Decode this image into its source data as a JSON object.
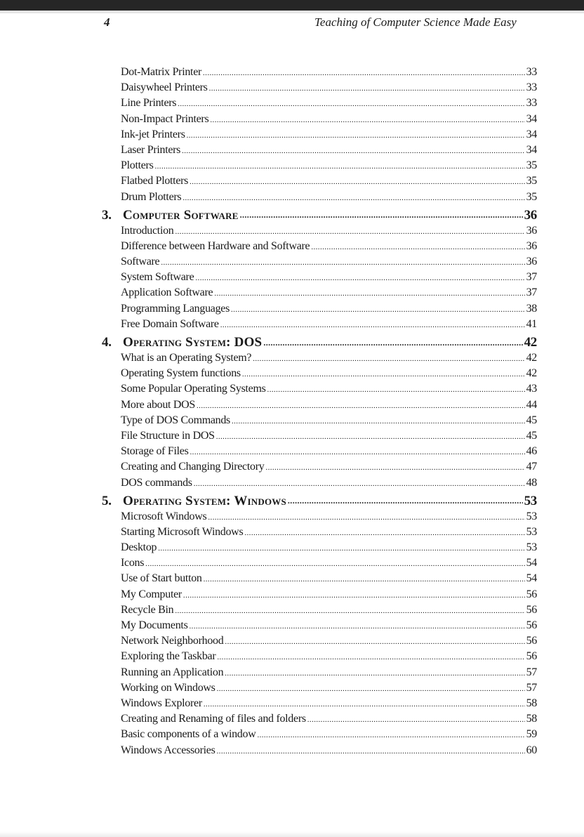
{
  "header": {
    "page_number": "4",
    "running_title": "Teaching of Computer Science Made Easy"
  },
  "toc": [
    {
      "type": "entry",
      "label": "Dot-Matrix Printer",
      "page": "33"
    },
    {
      "type": "entry",
      "label": "Daisywheel Printers",
      "page": "33"
    },
    {
      "type": "entry",
      "label": "Line Printers",
      "page": "33"
    },
    {
      "type": "entry",
      "label": "Non-Impact Printers",
      "page": "34"
    },
    {
      "type": "entry",
      "label": "Ink-jet Printers",
      "page": "34"
    },
    {
      "type": "entry",
      "label": "Laser Printers",
      "page": "34"
    },
    {
      "type": "entry",
      "label": "Plotters",
      "page": "35"
    },
    {
      "type": "entry",
      "label": "Flatbed Plotters",
      "page": "35"
    },
    {
      "type": "entry",
      "label": "Drum Plotters",
      "page": "35"
    },
    {
      "type": "chapter",
      "number": "3.",
      "label": "Computer Software",
      "page": "36"
    },
    {
      "type": "entry",
      "label": "Introduction",
      "page": "36"
    },
    {
      "type": "entry",
      "label": "Difference between Hardware and Software",
      "page": "36"
    },
    {
      "type": "entry",
      "label": "Software",
      "page": "36"
    },
    {
      "type": "entry",
      "label": "System Software",
      "page": "37"
    },
    {
      "type": "entry",
      "label": "Application Software",
      "page": "37"
    },
    {
      "type": "entry",
      "label": "Programming Languages",
      "page": "38"
    },
    {
      "type": "entry",
      "label": "Free Domain Software",
      "page": "41"
    },
    {
      "type": "chapter",
      "number": "4.",
      "label": "Operating System: DOS",
      "page": "42"
    },
    {
      "type": "entry",
      "label": "What is an Operating System?",
      "page": "42"
    },
    {
      "type": "entry",
      "label": "Operating System functions",
      "page": "42"
    },
    {
      "type": "entry",
      "label": "Some Popular Operating Systems",
      "page": "43"
    },
    {
      "type": "entry",
      "label": "More about DOS",
      "page": "44"
    },
    {
      "type": "entry",
      "label": "Type of DOS Commands",
      "page": "45"
    },
    {
      "type": "entry",
      "label": "File Structure in DOS",
      "page": "45"
    },
    {
      "type": "entry",
      "label": "Storage of Files",
      "page": "46"
    },
    {
      "type": "entry",
      "label": "Creating and Changing Directory",
      "page": "47"
    },
    {
      "type": "entry",
      "label": "DOS commands",
      "page": "48"
    },
    {
      "type": "chapter",
      "number": "5.",
      "label": "Operating System: Windows",
      "page": "53"
    },
    {
      "type": "entry",
      "label": "Microsoft Windows",
      "page": "53"
    },
    {
      "type": "entry",
      "label": "Starting Microsoft Windows",
      "page": "53"
    },
    {
      "type": "entry",
      "label": "Desktop",
      "page": "53"
    },
    {
      "type": "entry",
      "label": "Icons",
      "page": "54"
    },
    {
      "type": "entry",
      "label": "Use of Start button",
      "page": "54"
    },
    {
      "type": "entry",
      "label": "My Computer",
      "page": "56"
    },
    {
      "type": "entry",
      "label": "Recycle Bin",
      "page": "56"
    },
    {
      "type": "entry",
      "label": "My Documents",
      "page": "56"
    },
    {
      "type": "entry",
      "label": "Network Neighborhood",
      "page": "56"
    },
    {
      "type": "entry",
      "label": "Exploring the Taskbar",
      "page": "56"
    },
    {
      "type": "entry",
      "label": "Running an Application",
      "page": "57"
    },
    {
      "type": "entry",
      "label": "Working on Windows",
      "page": "57"
    },
    {
      "type": "entry",
      "label": "Windows Explorer",
      "page": "58"
    },
    {
      "type": "entry",
      "label": "Creating and Renaming of files and folders",
      "page": "58"
    },
    {
      "type": "entry",
      "label": "Basic components of a window",
      "page": "59"
    },
    {
      "type": "entry",
      "label": "Windows Accessories",
      "page": "60"
    }
  ]
}
